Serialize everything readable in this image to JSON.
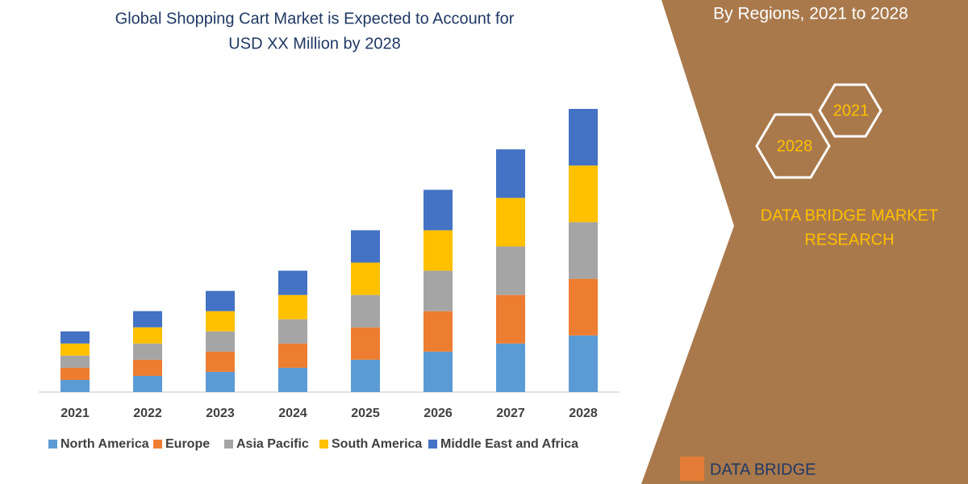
{
  "chart_data": {
    "type": "bar",
    "stacked": true,
    "title": "Global Shopping Cart Market is Expected to Account for USD XX Million by 2028",
    "categories": [
      "2021",
      "2022",
      "2023",
      "2024",
      "2025",
      "2026",
      "2027",
      "2028"
    ],
    "ylim": [
      0,
      350
    ],
    "series": [
      {
        "name": "North America",
        "color": "#5b9bd5",
        "values": [
          15,
          20,
          25,
          30,
          40,
          50,
          60,
          70
        ]
      },
      {
        "name": "Europe",
        "color": "#ed7d31",
        "values": [
          15,
          20,
          25,
          30,
          40,
          50,
          60,
          70
        ]
      },
      {
        "name": "Asia Pacific",
        "color": "#a5a5a5",
        "values": [
          15,
          20,
          25,
          30,
          40,
          50,
          60,
          70
        ]
      },
      {
        "name": "South America",
        "color": "#ffc000",
        "values": [
          15,
          20,
          25,
          30,
          40,
          50,
          60,
          70
        ]
      },
      {
        "name": "Middle East and Africa",
        "color": "#4472c4",
        "values": [
          15,
          20,
          25,
          30,
          40,
          50,
          60,
          70
        ]
      }
    ],
    "legend": "bottom"
  },
  "side_panel": {
    "subtitle": "By Regions, 2021 to 2028",
    "hexagons": [
      "2021",
      "2028"
    ],
    "brand": "DATA BRIDGE MARKET RESEARCH",
    "logo": "DATA BRIDGE"
  }
}
